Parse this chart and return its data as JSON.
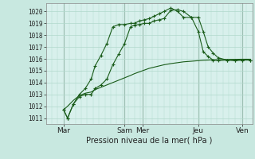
{
  "xlabel": "Pression niveau de la mer( hPa )",
  "background_color": "#c8e8e0",
  "plot_bg": "#d8f0ec",
  "grid_color": "#b0d8cc",
  "vline_color": "#708878",
  "line_color": "#1a5c1a",
  "ylim": [
    1010.5,
    1020.7
  ],
  "yticks": [
    1011,
    1012,
    1013,
    1014,
    1015,
    1016,
    1017,
    1018,
    1019,
    1020
  ],
  "xlim": [
    0,
    210
  ],
  "day_positions": [
    18,
    80,
    98,
    155,
    200
  ],
  "day_labels": [
    "Mar",
    "Sam",
    "Mer",
    "Jeu",
    "Ven"
  ],
  "vline_positions": [
    18,
    80,
    98,
    155,
    200
  ],
  "series1_x": [
    18,
    22,
    28,
    34,
    40,
    46,
    50,
    56,
    62,
    68,
    74,
    80,
    86,
    90,
    95,
    100,
    105,
    110,
    115,
    120,
    127,
    134,
    140,
    148,
    155,
    160,
    165,
    170,
    175,
    184,
    192,
    200,
    208
  ],
  "series1_y": [
    1011.7,
    1011.0,
    1012.2,
    1012.8,
    1013.0,
    1013.0,
    1013.5,
    1013.8,
    1014.3,
    1015.5,
    1016.4,
    1017.3,
    1018.7,
    1018.85,
    1018.9,
    1019.0,
    1019.0,
    1019.2,
    1019.3,
    1019.4,
    1020.1,
    1020.15,
    1020.0,
    1019.5,
    1019.5,
    1018.3,
    1017.0,
    1016.5,
    1016.1,
    1015.9,
    1015.85,
    1015.9,
    1015.9
  ],
  "series2_x": [
    18,
    22,
    28,
    34,
    40,
    46,
    50,
    56,
    62,
    68,
    74,
    80,
    86,
    90,
    95,
    100,
    105,
    110,
    115,
    120,
    127,
    134,
    140,
    148,
    155,
    160,
    165,
    170,
    175,
    184,
    192,
    200,
    208
  ],
  "series2_y": [
    1011.7,
    1011.0,
    1012.2,
    1013.0,
    1013.5,
    1014.3,
    1015.4,
    1016.3,
    1017.3,
    1018.7,
    1018.9,
    1018.9,
    1019.0,
    1019.0,
    1019.2,
    1019.3,
    1019.4,
    1019.6,
    1019.8,
    1020.0,
    1020.3,
    1020.0,
    1019.5,
    1019.5,
    1018.3,
    1016.6,
    1016.2,
    1015.9,
    1015.85,
    1015.9,
    1015.9,
    1015.9,
    1015.9
  ],
  "series3_x": [
    18,
    22,
    28,
    34,
    40,
    46,
    50,
    56,
    62,
    68,
    74,
    80,
    86,
    90,
    95,
    100,
    105,
    110,
    115,
    120,
    127,
    134,
    140,
    148,
    155,
    160,
    165,
    170,
    175,
    184,
    192,
    200,
    208
  ],
  "series3_y": [
    1011.7,
    1012.0,
    1012.5,
    1012.9,
    1013.1,
    1013.2,
    1013.4,
    1013.6,
    1013.8,
    1014.0,
    1014.2,
    1014.4,
    1014.6,
    1014.75,
    1014.9,
    1015.05,
    1015.2,
    1015.3,
    1015.4,
    1015.5,
    1015.6,
    1015.68,
    1015.75,
    1015.8,
    1015.85,
    1015.88,
    1015.9,
    1015.92,
    1015.93,
    1015.95,
    1015.96,
    1015.97,
    1015.97
  ]
}
